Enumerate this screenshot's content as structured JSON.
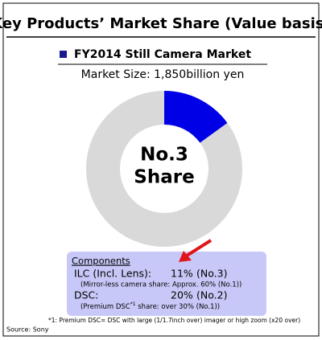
{
  "chart_data": {
    "type": "donut",
    "title": "Key Products’ Market Share (Value basis)",
    "subtitle": "FY2014 Still Camera Market",
    "market_size": "Market Size: 1,850billion yen",
    "center_label": [
      "No.3",
      "Share"
    ],
    "values": [
      15,
      85
    ],
    "colors": [
      "#0000e6",
      "#d9d9d9"
    ],
    "components": {
      "heading": "Components",
      "rows": [
        {
          "name": "ILC (Incl. Lens):",
          "share": "11%",
          "rank": "(No.3)",
          "note": [
            "(Mirror-less camera share: Approx. 60% (No.1))"
          ]
        },
        {
          "name": "DSC:",
          "share": "20%",
          "rank": "(No.2)",
          "note": [
            "(Premium DSC",
            "*1",
            " share: over 30% (No.1))"
          ]
        }
      ]
    },
    "footnote": "*1: Premium DSC= DSC with large (1/1.7inch over) imager or high zoom (x20 over)",
    "source": "Source: Sony"
  }
}
